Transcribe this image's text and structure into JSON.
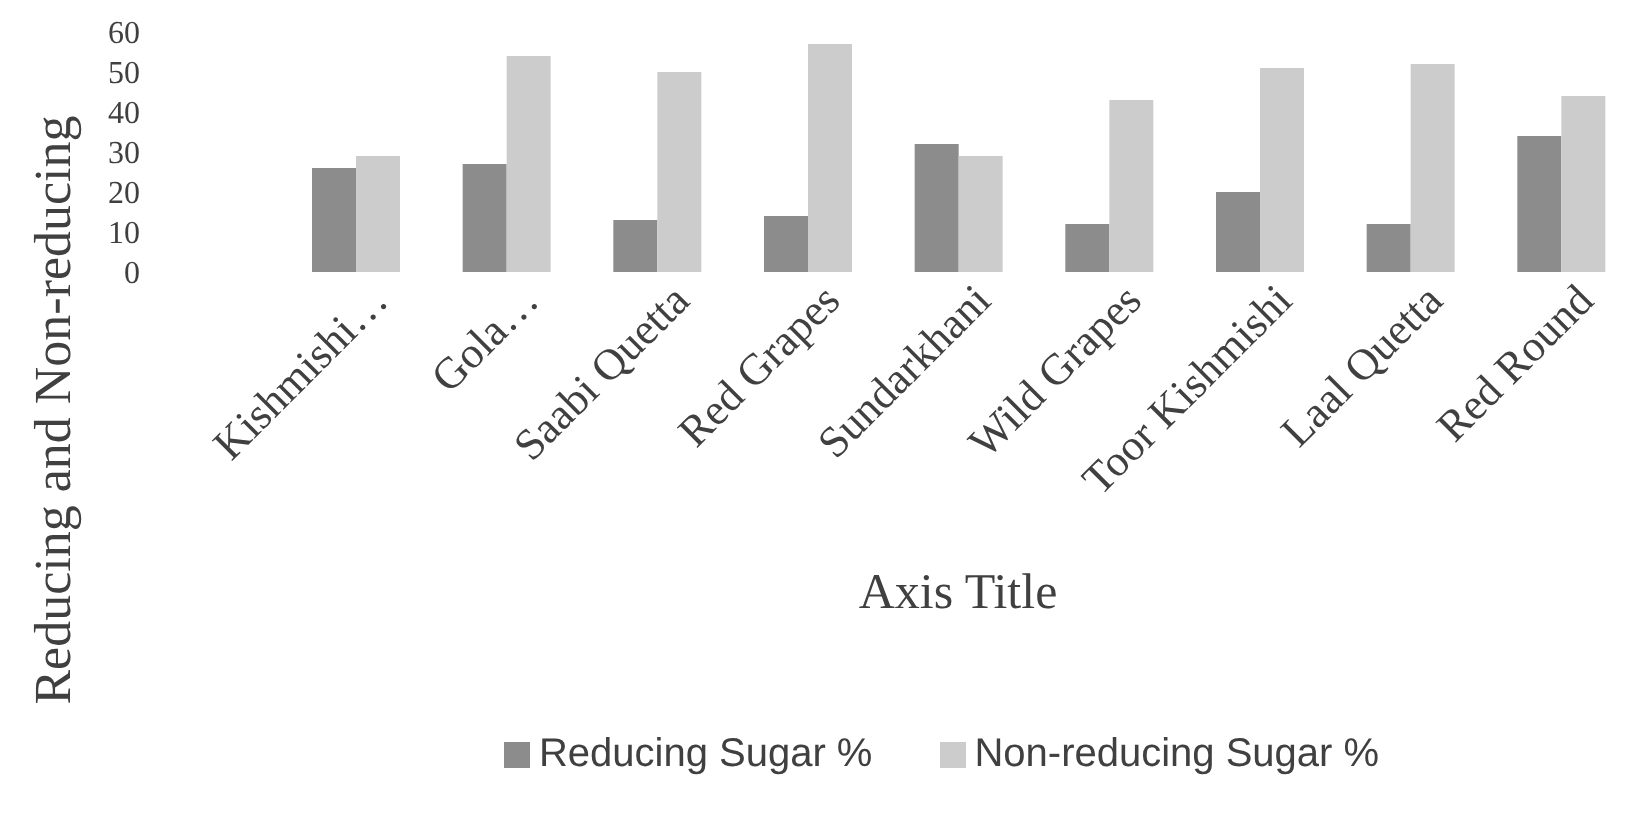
{
  "chart_data": {
    "type": "bar",
    "xlabel": "Axis Title",
    "ylabel": "Reducing and Non-reducing",
    "categories": [
      "Kishmishi…",
      "Gola…",
      "Saabi Quetta",
      "Red Grapes",
      "Sundarkhani",
      "Wild Grapes",
      "Toor Kishmishi",
      "Laal Quetta",
      "Red Round"
    ],
    "series": [
      {
        "name": "Reducing Sugar %",
        "color": "#8c8c8c",
        "values": [
          26,
          27,
          13,
          14,
          32,
          12,
          20,
          12,
          34
        ]
      },
      {
        "name": "Non-reducing Sugar %",
        "color": "#cccccc",
        "values": [
          29,
          54,
          50,
          57,
          29,
          43,
          51,
          52,
          44
        ]
      }
    ],
    "ylim": [
      0,
      60
    ],
    "yticks": [
      0,
      10,
      20,
      30,
      40,
      50,
      60
    ],
    "legend": "bottom"
  }
}
